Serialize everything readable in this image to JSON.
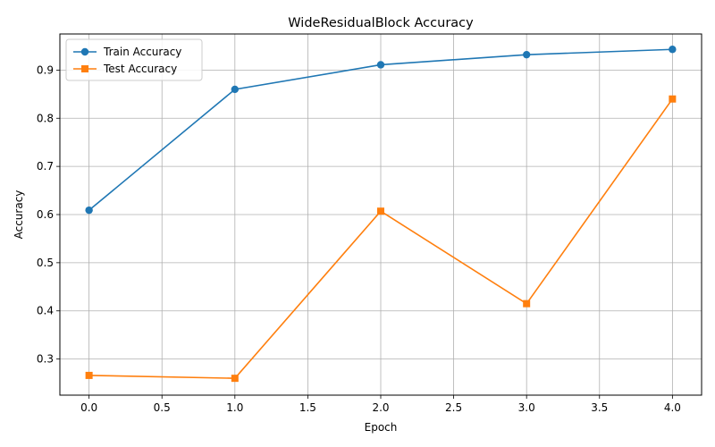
{
  "chart_data": {
    "type": "line",
    "title": "WideResidualBlock Accuracy",
    "xlabel": "Epoch",
    "ylabel": "Accuracy",
    "x": [
      0,
      1,
      2,
      3,
      4
    ],
    "xlim": [
      -0.2,
      4.2
    ],
    "ylim": [
      0.225,
      0.975
    ],
    "xticks": [
      "0.0",
      "0.5",
      "1.0",
      "1.5",
      "2.0",
      "2.5",
      "3.0",
      "3.5",
      "4.0"
    ],
    "yticks": [
      "0.3",
      "0.4",
      "0.5",
      "0.6",
      "0.7",
      "0.8",
      "0.9"
    ],
    "grid": true,
    "legend_position": "upper left",
    "series": [
      {
        "name": "Train Accuracy",
        "values": [
          0.609,
          0.86,
          0.911,
          0.932,
          0.943
        ],
        "color": "#1f77b4",
        "marker": "circle"
      },
      {
        "name": "Test Accuracy",
        "values": [
          0.266,
          0.26,
          0.607,
          0.415,
          0.84
        ],
        "color": "#ff7f0e",
        "marker": "square"
      }
    ]
  }
}
